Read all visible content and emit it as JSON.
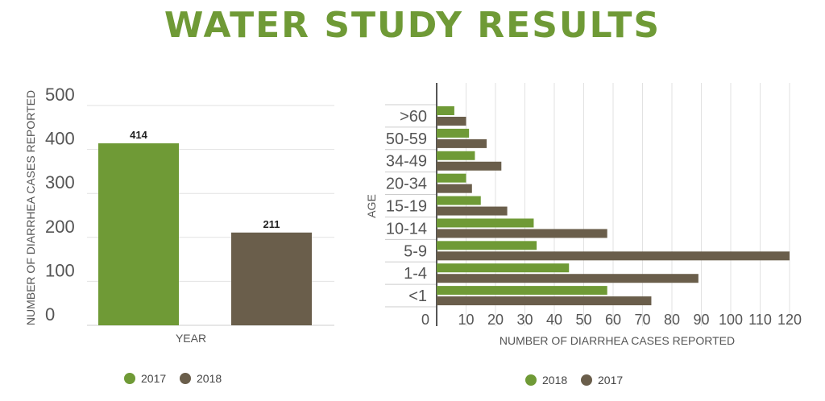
{
  "title": "WATER STUDY RESULTS",
  "colors": {
    "green": "#6f9a36",
    "brown": "#6a5e4b",
    "title": "#6f9a36"
  },
  "chart_data": [
    {
      "type": "bar",
      "categories": [
        "2017",
        "2018"
      ],
      "values": [
        414,
        211
      ],
      "data_labels": [
        "414",
        "211"
      ],
      "xlabel": "YEAR",
      "ylabel": "NUMBER OF DIARRHEA CASES REPORTED",
      "yticks": [
        "0",
        "100",
        "200",
        "300",
        "400",
        "500"
      ],
      "ylim": [
        0,
        500
      ],
      "legend": [
        {
          "name": "2017",
          "color": "#6f9a36"
        },
        {
          "name": "2018",
          "color": "#6a5e4b"
        }
      ],
      "legend_position": "bottom",
      "grid": true
    },
    {
      "type": "bar",
      "orientation": "horizontal",
      "categories": [
        ">60",
        "50-59",
        "34-49",
        "20-34",
        "15-19",
        "10-14",
        "5-9",
        "1-4",
        "<1"
      ],
      "series": [
        {
          "name": "2018",
          "color": "#6f9a36",
          "values": [
            6,
            11,
            13,
            10,
            15,
            33,
            34,
            45,
            58
          ]
        },
        {
          "name": "2017",
          "color": "#6a5e4b",
          "values": [
            10,
            17,
            22,
            12,
            24,
            58,
            120,
            89,
            73
          ]
        }
      ],
      "xlabel": "NUMBER OF DIARRHEA CASES REPORTED",
      "ylabel": "AGE",
      "xticks": [
        "0",
        "10",
        "20",
        "30",
        "40",
        "50",
        "60",
        "70",
        "80",
        "90",
        "100",
        "110",
        "120"
      ],
      "xlim": [
        0,
        120
      ],
      "legend_position": "bottom",
      "grid": true
    }
  ]
}
